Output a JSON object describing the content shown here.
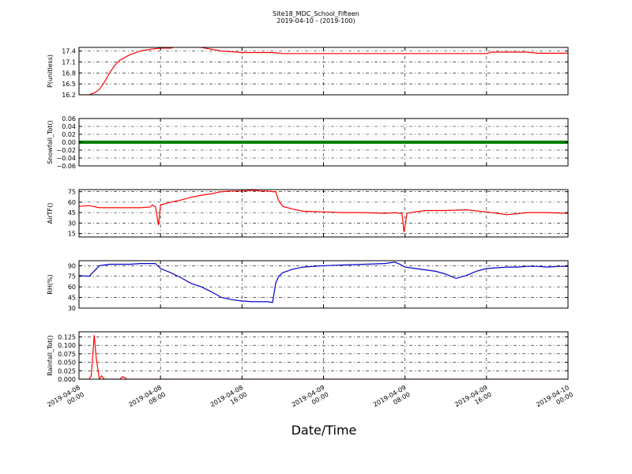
{
  "header": {
    "title": "Site18_MDC_School_Fifteen",
    "subtitle": "2019-04-10 - (2019-100)"
  },
  "x_axis": {
    "label": "Date/Time",
    "tick_dates": [
      "2019-04-08",
      "2019-04-08",
      "2019-04-08",
      "2019-04-09",
      "2019-04-09",
      "2019-04-09",
      "2019-04-10"
    ],
    "tick_times": [
      "00:00",
      "08:00",
      "16:00",
      "00:00",
      "08:00",
      "16:00",
      "00:00"
    ]
  },
  "chart_data": [
    {
      "type": "line",
      "ylabel": "P(unitless)",
      "ylim": [
        16.2,
        17.5
      ],
      "yticks": [
        "16.2",
        "16.5",
        "16.8",
        "17.1",
        "17.4"
      ],
      "grid": true,
      "color": "#ff0000",
      "x_hours": [
        0,
        1,
        1.5,
        2,
        2.5,
        3,
        3.5,
        4,
        5,
        6,
        7,
        8,
        9,
        9.5,
        10,
        12,
        13,
        14,
        15,
        16,
        18,
        19,
        20,
        22,
        26,
        30,
        32,
        34,
        36,
        38,
        40,
        40.5,
        41,
        44,
        45,
        46,
        48
      ],
      "values": [
        16.2,
        16.2,
        16.25,
        16.35,
        16.55,
        16.8,
        17.0,
        17.15,
        17.3,
        17.4,
        17.45,
        17.48,
        17.48,
        17.52,
        17.52,
        17.5,
        17.45,
        17.4,
        17.38,
        17.36,
        17.36,
        17.36,
        17.33,
        17.33,
        17.33,
        17.33,
        17.33,
        17.33,
        17.33,
        17.33,
        17.33,
        17.37,
        17.37,
        17.37,
        17.34,
        17.34,
        17.34
      ]
    },
    {
      "type": "line",
      "ylabel": "Snowfall_Tot()",
      "ylim": [
        -0.06,
        0.06
      ],
      "yticks": [
        "−0.06",
        "−0.04",
        "−0.02",
        "0.00",
        "0.02",
        "0.04",
        "0.06"
      ],
      "grid": true,
      "color": "#008000",
      "x_hours": [
        0,
        48
      ],
      "values": [
        0,
        0
      ]
    },
    {
      "type": "line",
      "ylabel": "AirTF()",
      "ylim": [
        10,
        78
      ],
      "yticks": [
        "15",
        "30",
        "45",
        "60",
        "75"
      ],
      "grid": true,
      "color": "#ff0000",
      "x_hours": [
        0,
        1,
        2,
        3,
        4,
        5,
        6,
        7,
        7.2,
        7.4,
        7.5,
        7.8,
        8,
        9,
        10,
        11,
        12,
        13,
        14,
        15,
        16,
        17,
        18,
        18.5,
        19,
        19.3,
        19.6,
        20,
        21,
        22,
        24,
        26,
        28,
        30,
        31,
        31.5,
        31.7,
        31.9,
        32.2,
        33,
        34,
        36,
        38,
        40,
        42,
        44,
        46,
        48
      ],
      "values": [
        54,
        55,
        52,
        52,
        52,
        52,
        52,
        53,
        56,
        54,
        54,
        27,
        56,
        60,
        63,
        67,
        70,
        72,
        75,
        76,
        76,
        77,
        76,
        76,
        75,
        75,
        62,
        54,
        50,
        47,
        46,
        45,
        45,
        44,
        45,
        44,
        44,
        17,
        44,
        46,
        48,
        48,
        49,
        46,
        42,
        45,
        45,
        44
      ]
    },
    {
      "type": "line",
      "ylabel": "RH(%)",
      "ylim": [
        30,
        97
      ],
      "yticks": [
        "30",
        "45",
        "60",
        "75",
        "90"
      ],
      "grid": true,
      "color": "#0000cc",
      "x_hours": [
        0,
        1,
        2,
        3,
        4,
        5,
        6,
        7,
        7.5,
        8,
        9,
        10,
        11,
        12,
        13,
        14,
        15,
        16,
        17,
        18,
        18.5,
        19,
        19.3,
        19.6,
        20,
        21,
        22,
        24,
        26,
        28,
        30,
        31,
        31.5,
        32,
        33,
        34,
        35,
        36,
        37,
        38,
        39,
        40,
        41,
        42,
        43,
        44,
        45,
        46,
        47,
        48
      ],
      "values": [
        76,
        75,
        90,
        92,
        92,
        92,
        93,
        93,
        93,
        86,
        80,
        73,
        65,
        60,
        53,
        45,
        42,
        40,
        39,
        39,
        39,
        38,
        65,
        75,
        80,
        85,
        88,
        90,
        91,
        92,
        93,
        95,
        92,
        88,
        86,
        84,
        82,
        78,
        72,
        76,
        82,
        86,
        87,
        88,
        88,
        89,
        89,
        88,
        89,
        89
      ]
    },
    {
      "type": "line",
      "ylabel": "Rainfall_Tot()",
      "ylim": [
        0,
        0.14
      ],
      "yticks": [
        "0.000",
        "0.025",
        "0.050",
        "0.075",
        "0.100",
        "0.125"
      ],
      "grid": true,
      "color": "#ff0000",
      "x_hours": [
        0,
        1,
        1.2,
        1.5,
        1.7,
        2,
        2.2,
        2.5,
        3,
        3.5,
        4,
        4.3,
        4.7,
        5,
        48
      ],
      "values": [
        0,
        0,
        0.01,
        0.13,
        0.06,
        0,
        0.01,
        0,
        0,
        0,
        0,
        0.008,
        0,
        0,
        0
      ]
    }
  ]
}
